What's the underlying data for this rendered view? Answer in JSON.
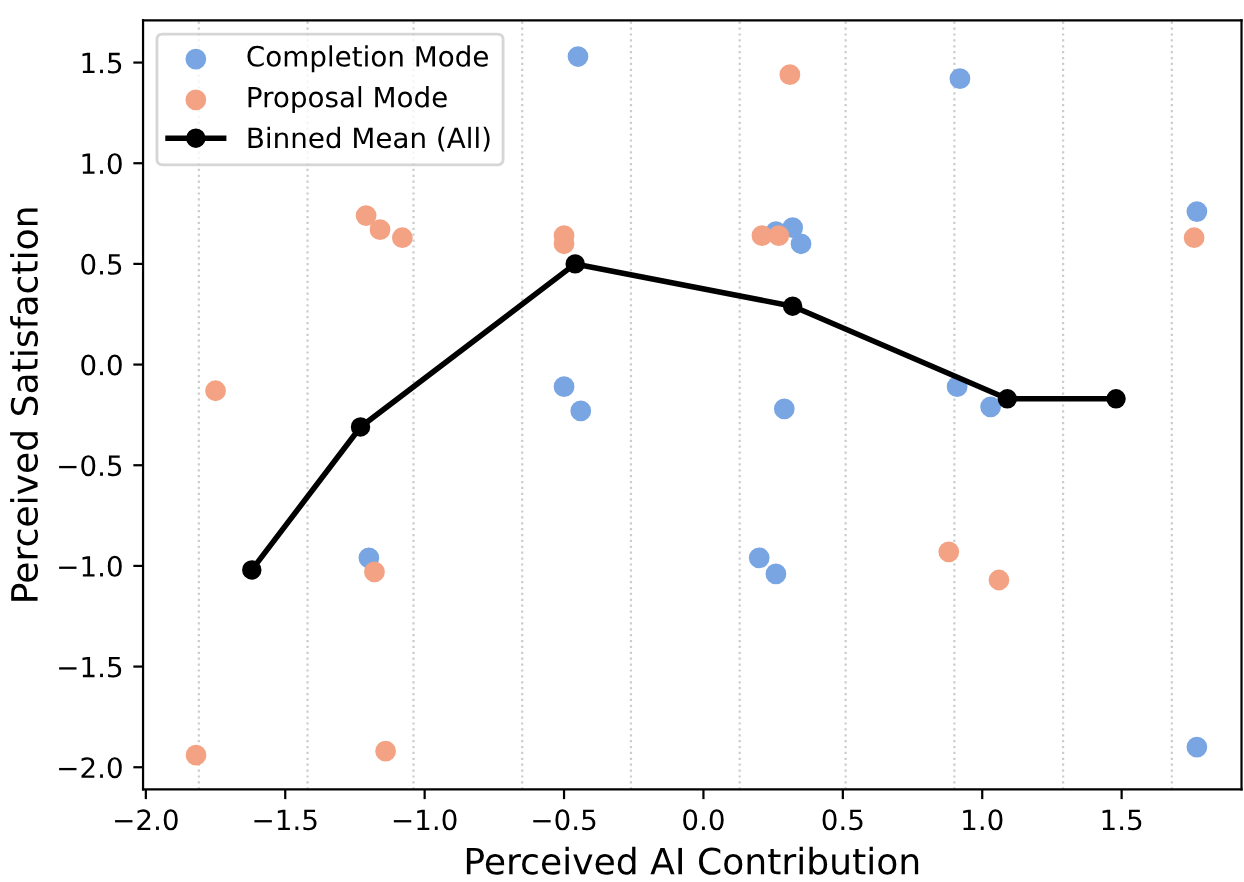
{
  "chart_data": {
    "type": "scatter",
    "xlabel": "Perceived AI Contribution",
    "ylabel": "Perceived Satisfaction",
    "xlim": [
      -2.01,
      1.93
    ],
    "ylim": [
      -2.11,
      1.71
    ],
    "xticks": [
      {
        "value": -2.0,
        "label": "−2.0"
      },
      {
        "value": -1.5,
        "label": "−1.5"
      },
      {
        "value": -1.0,
        "label": "−1.0"
      },
      {
        "value": -0.5,
        "label": "−0.5"
      },
      {
        "value": 0.0,
        "label": "0.0"
      },
      {
        "value": 0.5,
        "label": "0.5"
      },
      {
        "value": 1.0,
        "label": "1.0"
      },
      {
        "value": 1.5,
        "label": "1.5"
      }
    ],
    "yticks": [
      {
        "value": -2.0,
        "label": "−2.0"
      },
      {
        "value": -1.5,
        "label": "−1.5"
      },
      {
        "value": -1.0,
        "label": "−1.0"
      },
      {
        "value": -0.5,
        "label": "−0.5"
      },
      {
        "value": 0.0,
        "label": "0.0"
      },
      {
        "value": 0.5,
        "label": "0.5"
      },
      {
        "value": 1.0,
        "label": "1.0"
      },
      {
        "value": 1.5,
        "label": "1.5"
      }
    ],
    "grid": false,
    "legend": "top left",
    "marker": "circle",
    "series": [
      {
        "name": "Completion Mode",
        "color": "#7aa5e3",
        "x": [
          -0.45,
          -0.5,
          -0.44,
          0.26,
          0.32,
          0.35,
          0.29,
          0.92,
          0.91,
          1.03,
          1.77,
          -1.2,
          0.2,
          0.26,
          1.77
        ],
        "values": [
          1.53,
          -0.11,
          -0.23,
          0.66,
          0.68,
          0.6,
          -0.22,
          1.42,
          -0.11,
          -0.21,
          0.76,
          -0.96,
          -0.96,
          -1.04,
          -1.9
        ]
      },
      {
        "name": "Proposal Mode",
        "color": "#f4a284",
        "x": [
          -1.75,
          -1.21,
          -1.16,
          -1.08,
          -0.5,
          -0.5,
          0.31,
          0.21,
          0.27,
          1.76,
          -1.18,
          -1.82,
          -1.14,
          0.88,
          1.06
        ],
        "values": [
          -0.13,
          0.74,
          0.67,
          0.63,
          0.64,
          0.6,
          1.44,
          0.64,
          0.64,
          0.63,
          -1.03,
          -1.94,
          -1.92,
          -0.93,
          -1.07
        ]
      },
      {
        "name": "Binned Mean (All)",
        "type": "line",
        "color": "#000000",
        "line_style": "solid",
        "x": [
          -1.62,
          -1.23,
          -0.46,
          0.32,
          1.09,
          1.48
        ],
        "values": [
          -1.02,
          -0.31,
          0.5,
          0.29,
          -0.17,
          -0.17
        ]
      }
    ],
    "ref_lines": [
      {
        "axis": "x",
        "value": -1.81,
        "color": "#cccccc",
        "line_style": "dotted"
      },
      {
        "axis": "x",
        "value": -1.42,
        "color": "#cccccc",
        "line_style": "dotted"
      },
      {
        "axis": "x",
        "value": -1.04,
        "color": "#cccccc",
        "line_style": "dotted"
      },
      {
        "axis": "x",
        "value": -0.65,
        "color": "#cccccc",
        "line_style": "dotted"
      },
      {
        "axis": "x",
        "value": -0.26,
        "color": "#cccccc",
        "line_style": "dotted"
      },
      {
        "axis": "x",
        "value": 0.13,
        "color": "#cccccc",
        "line_style": "dotted"
      },
      {
        "axis": "x",
        "value": 0.51,
        "color": "#cccccc",
        "line_style": "dotted"
      },
      {
        "axis": "x",
        "value": 0.9,
        "color": "#cccccc",
        "line_style": "dotted"
      },
      {
        "axis": "x",
        "value": 1.29,
        "color": "#cccccc",
        "line_style": "dotted"
      },
      {
        "axis": "x",
        "value": 1.68,
        "color": "#cccccc",
        "line_style": "dotted"
      }
    ]
  }
}
